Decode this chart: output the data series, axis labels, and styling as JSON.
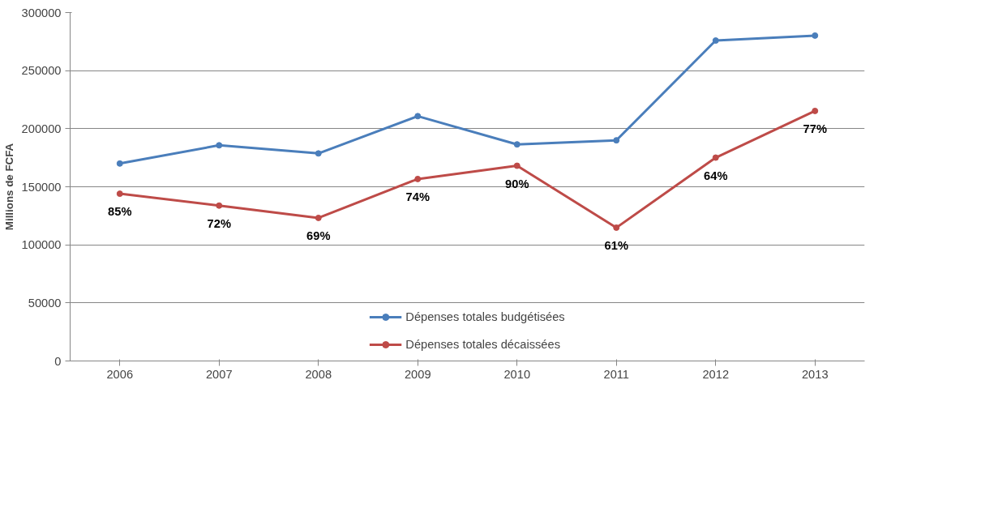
{
  "chart_data": {
    "type": "line",
    "ylabel": "Millions de FCFA",
    "categories": [
      "2006",
      "2007",
      "2008",
      "2009",
      "2010",
      "2011",
      "2012",
      "2013"
    ],
    "series": [
      {
        "name": "Dépenses totales budgétisées",
        "color": "#4a7ebb",
        "values": [
          170000,
          185700,
          178700,
          210800,
          186500,
          190000,
          275900,
          280200
        ]
      },
      {
        "name": "Dépenses totales décaissées",
        "color": "#be4b48",
        "values": [
          144000,
          133800,
          123200,
          156700,
          168100,
          114800,
          175100,
          215300
        ]
      }
    ],
    "ylim": [
      0,
      300000
    ],
    "yticks": [
      0,
      50000,
      100000,
      150000,
      200000,
      250000,
      300000
    ],
    "grid": "y",
    "legend": "bottom",
    "marker": "circle",
    "line_style": "solid",
    "annotations": [
      "85%",
      "72%",
      "69%",
      "74%",
      "90%",
      "61%",
      "64%",
      "77%"
    ]
  }
}
